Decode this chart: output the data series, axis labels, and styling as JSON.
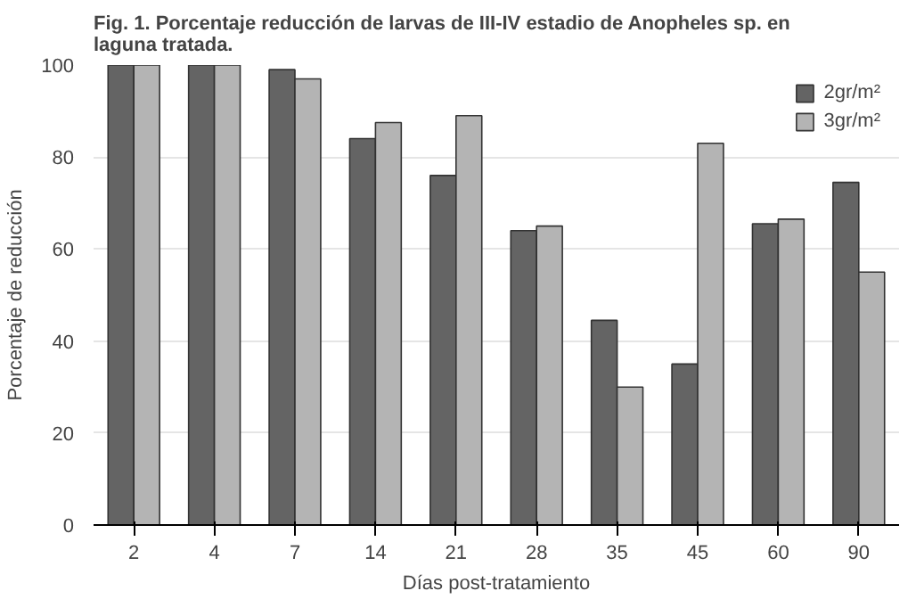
{
  "chart_data": {
    "type": "bar",
    "title": "Fig. 1. Porcentaje reducción de larvas de III-IV estadio de Anopheles sp. en laguna tratada.",
    "xlabel": "Días post-tratamiento",
    "ylabel": "Porcentaje de reducción",
    "categories": [
      "2",
      "4",
      "7",
      "14",
      "21",
      "28",
      "35",
      "45",
      "60",
      "90"
    ],
    "series": [
      {
        "name": "2gr/m²",
        "color": "#646464",
        "values": [
          100,
          100,
          99,
          84,
          76,
          64,
          44.5,
          35,
          65.5,
          74.5
        ]
      },
      {
        "name": "3gr/m²",
        "color": "#b4b4b4",
        "values": [
          100,
          100,
          97,
          87.5,
          89,
          65,
          30,
          83,
          66.5,
          55
        ]
      }
    ],
    "ylim": [
      0,
      100
    ],
    "yticks": [
      0,
      20,
      40,
      60,
      80,
      100
    ],
    "grid": "y",
    "legend": "top right"
  }
}
